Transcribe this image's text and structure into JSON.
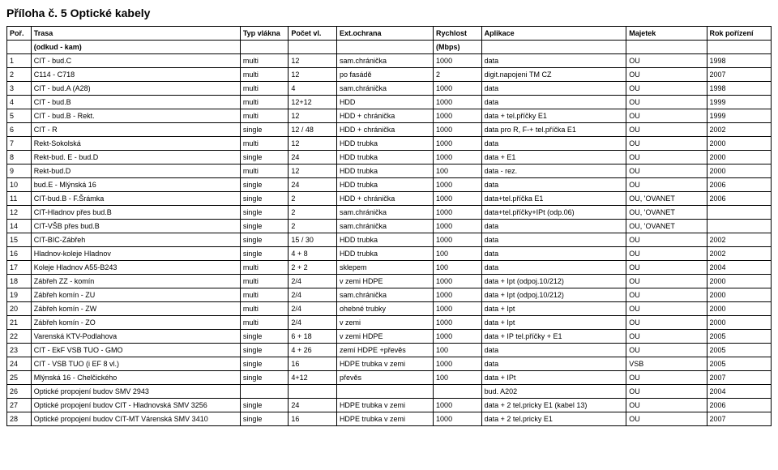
{
  "title": "Příloha č. 5 Optické kabely",
  "headers": {
    "por": "Poř.",
    "trasa": "Trasa",
    "typ": "Typ vlákna",
    "pocet": "Počet vl.",
    "ext": "Ext.ochrana",
    "rychlost": "Rychlost",
    "aplikace": "Aplikace",
    "majetek": "Majetek",
    "rok": "Rok pořízení",
    "sub_trasa": "(odkud - kam)",
    "sub_rychlost": "(Mbps)"
  },
  "rows": [
    [
      "1",
      "CIT - bud.C",
      "multi",
      "12",
      "sam.chránička",
      "1000",
      "data",
      "OU",
      "1998"
    ],
    [
      "2",
      "C114 - C718",
      "multi",
      "12",
      "po fasádě",
      "2",
      "digit.napojeni TM CZ",
      "OU",
      "2007"
    ],
    [
      "3",
      "CIT - bud.A (A28)",
      "multi",
      "4",
      "sam.chránička",
      "1000",
      "data",
      "OU",
      "1998"
    ],
    [
      "4",
      "CIT - bud.B",
      "multi",
      "12+12",
      "HDD",
      "1000",
      "data",
      "OU",
      "1999"
    ],
    [
      "5",
      "CIT - bud.B - Rekt.",
      "multi",
      "12",
      "HDD + chránička",
      "1000",
      "data + tel.příčky E1",
      "OU",
      "1999"
    ],
    [
      "6",
      "CIT - R",
      "single",
      "12 / 48",
      "HDD + chránička",
      "1000",
      "data pro R, F-+ tel.příčka E1",
      "OU",
      "2002"
    ],
    [
      "7",
      "Rekt-Sokolská",
      "multi",
      "12",
      "HDD trubka",
      "1000",
      "data",
      "OU",
      "2000"
    ],
    [
      "8",
      "Rekt-bud. E - bud.D",
      "single",
      "24",
      "HDD trubka",
      "1000",
      "data + E1",
      "OU",
      "2000"
    ],
    [
      "9",
      "Rekt-bud.D",
      "multi",
      "12",
      "HDD trubka",
      "100",
      "data - rez.",
      "OU",
      "2000"
    ],
    [
      "10",
      "bud.E - Mlýnská 16",
      "single",
      "24",
      "HDD trubka",
      "1000",
      "data",
      "OU",
      "2006"
    ],
    [
      "11",
      "CIT-bud.B - F.Šrámka",
      "single",
      "2",
      "HDD + chránička",
      "1000",
      "data+tel.příčka E1",
      "OU, 'OVANET",
      "2006"
    ],
    [
      "12",
      "CIT-Hladnov přes bud.B",
      "single",
      "2",
      "sam.chránička",
      "1000",
      "data+tel.příčky+IPt (odp.06)",
      "OU, 'OVANET",
      ""
    ],
    [
      "14",
      "CIT-VŠB přes bud.B",
      "single",
      "2",
      "sam.chránička",
      "1000",
      "data",
      "OU, 'OVANET",
      ""
    ],
    [
      "15",
      "CIT-BIC-Zábřeh",
      "single",
      "15 / 30",
      "HDD trubka",
      "1000",
      "data",
      "OU",
      "2002"
    ],
    [
      "16",
      "Hladnov-koleje Hladnov",
      "single",
      "4 + 8",
      "HDD trubka",
      "100",
      "data",
      "OU",
      "2002"
    ],
    [
      "17",
      "Koleje Hladnov A55-B243",
      "multi",
      "2 + 2",
      "sklepem",
      "100",
      "data",
      "OU",
      "2004"
    ],
    [
      "18",
      "Zábřeh ZZ  - komín",
      "multi",
      "2/4",
      "v zemi HDPE",
      "1000",
      "data + Ipt (odpoj.10/212)",
      "OU",
      "2000"
    ],
    [
      "19",
      "Zábřeh komín - ZU",
      "multi",
      "2/4",
      "sam.chránička",
      "1000",
      "data + Ipt (odpoj.10/212)",
      "OU",
      "2000"
    ],
    [
      "20",
      "Zábřeh komín - ZW",
      "multi",
      "2/4",
      "ohebné trubky",
      "1000",
      "data + Ipt",
      "OU",
      "2000"
    ],
    [
      "21",
      "Zábřeh komín - ZO",
      "multi",
      "2/4",
      "v zemi",
      "1000",
      "data + Ipt",
      "OU",
      "2000"
    ],
    [
      "22",
      "Varenská KTV-Podlahova",
      "single",
      "6 + 18",
      "v zemi HDPE",
      "1000",
      "data + IP tel.příčky + E1",
      "OU",
      "2005"
    ],
    [
      "23",
      "CIT - EkF VSB TUO - GMO",
      "single",
      "4 + 26",
      "zemí HDPE +převěs",
      "100",
      "data",
      "OU",
      "2005"
    ],
    [
      "24",
      "CIT - VSB TUO (i EF 8 vl.)",
      "single",
      "16",
      "HDPE trubka v zemi",
      "1000",
      "data",
      "VSB",
      "2005"
    ],
    [
      "25",
      "Mlýnská 16 - Chelčického",
      "single",
      "4+12",
      "převěs",
      "100",
      "data + IPt",
      "OU",
      "2007"
    ],
    [
      "26",
      "Optické propojení budov SMV 2943",
      "",
      "",
      "",
      "",
      "bud. A202",
      "OU",
      "2004"
    ],
    [
      "27",
      "Optické propojení budov CIT - Hladnovská SMV 3256",
      "single",
      "24",
      "HDPE trubka v zemi",
      "1000",
      "data + 2 tel.pricky E1 (kabel 13)",
      "OU",
      "2006"
    ],
    [
      "28",
      "Optické propojení budov CIT-MT Várenská SMV 3410",
      "single",
      "16",
      "HDPE trubka v zemi",
      "1000",
      "data + 2 tel.pricky E1",
      "OU",
      "2007"
    ]
  ]
}
